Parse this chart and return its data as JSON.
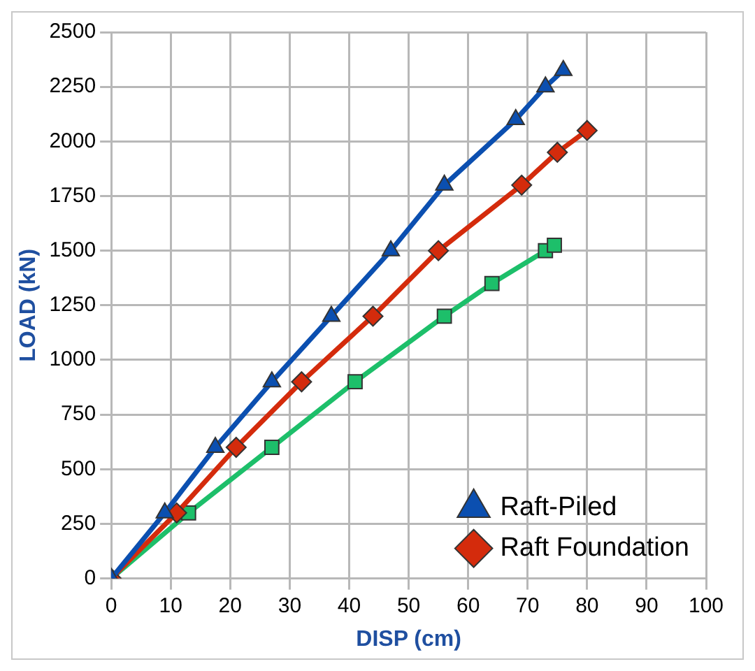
{
  "chart_data": {
    "type": "line",
    "xlabel": "DISP (cm)",
    "ylabel": "LOAD (kN)",
    "xlim": [
      0,
      100
    ],
    "xticks": [
      0,
      10,
      20,
      30,
      40,
      50,
      60,
      70,
      80,
      90,
      100
    ],
    "ylim": [
      0,
      2500
    ],
    "yticks": [
      0,
      250,
      500,
      750,
      1000,
      1250,
      1500,
      1750,
      2000,
      2250,
      2500
    ],
    "grid": true,
    "legend": "bottom right",
    "series": [
      {
        "name": "Raft-Piled",
        "color": "#0b4fb0",
        "marker": "triangle",
        "x": [
          0,
          9,
          17.5,
          27,
          37,
          47,
          56,
          68,
          73,
          76
        ],
        "values": [
          0,
          300,
          600,
          900,
          1200,
          1500,
          1800,
          2100,
          2250,
          2325
        ]
      },
      {
        "name": "Raft Foundation",
        "color": "#d42b0c",
        "marker": "diamond",
        "x": [
          0,
          11,
          21,
          32,
          44,
          55,
          69,
          75,
          80
        ],
        "values": [
          0,
          300,
          600,
          900,
          1200,
          1500,
          1800,
          1950,
          2050
        ]
      },
      {
        "color": "#1dbf6a",
        "marker": "square",
        "x": [
          0,
          13,
          27,
          41,
          56,
          64,
          73,
          74.5
        ],
        "values": [
          0,
          300,
          600,
          900,
          1200,
          1350,
          1500,
          1525
        ]
      }
    ]
  }
}
